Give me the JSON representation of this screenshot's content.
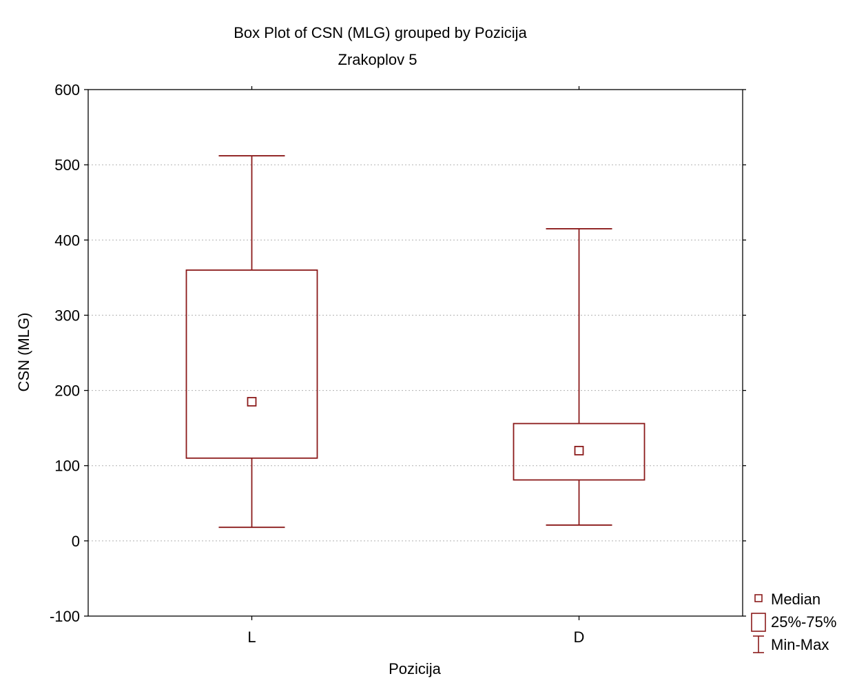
{
  "chart_data": {
    "type": "box",
    "title": "Box Plot of CSN (MLG) grouped by  Pozicija",
    "subtitle": "Zrakoplov 5",
    "xlabel": "Pozicija",
    "ylabel": "CSN (MLG)",
    "ylim": [
      -100,
      600
    ],
    "yticks": [
      -100,
      0,
      100,
      200,
      300,
      400,
      500,
      600
    ],
    "ytick_labels": [
      "-100",
      "0",
      "100",
      "200",
      "300",
      "400",
      "500",
      "600"
    ],
    "grid": "horizontal-dotted",
    "categories": [
      "L",
      "D"
    ],
    "boxes": [
      {
        "category": "L",
        "min": 18,
        "q1": 110,
        "median": 185,
        "q3": 360,
        "max": 512
      },
      {
        "category": "D",
        "min": 21,
        "q1": 81,
        "median": 120,
        "q3": 156,
        "max": 415
      }
    ],
    "legend": {
      "placement": "bottom-right-outside",
      "items": [
        {
          "symbol": "median-square",
          "label": "Median"
        },
        {
          "symbol": "box",
          "label": "25%-75%"
        },
        {
          "symbol": "whisker",
          "label": "Min-Max"
        }
      ]
    },
    "colors": {
      "series": "#8b1a1a",
      "axis": "#000000",
      "grid": "#b0b0b0"
    }
  }
}
